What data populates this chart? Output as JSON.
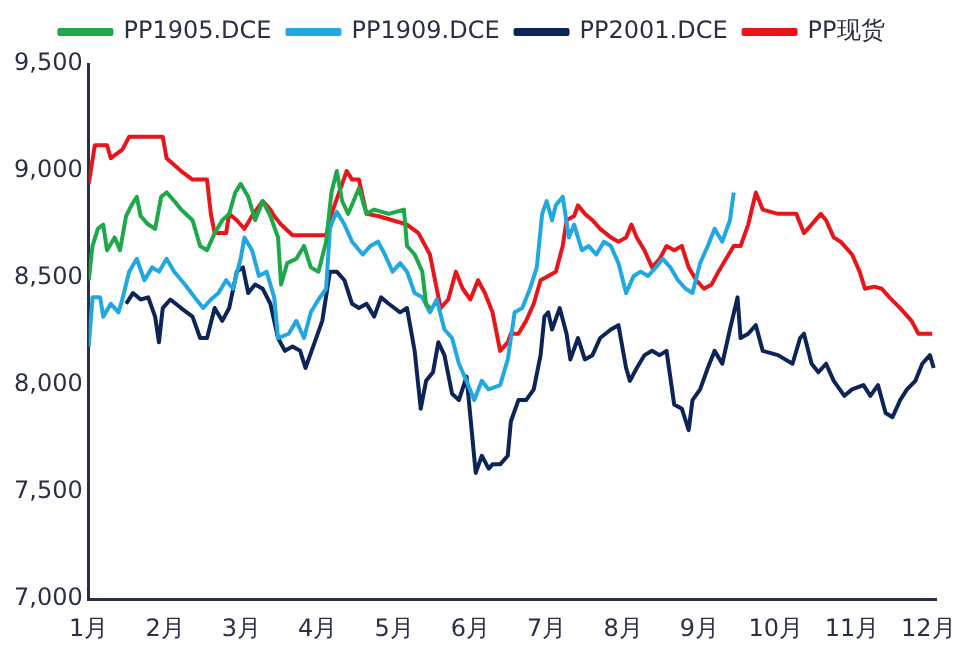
{
  "chart_data": {
    "type": "line",
    "legend": "top",
    "grid": false,
    "xlim": [
      1,
      12.1
    ],
    "xticks": [
      {
        "value": 1,
        "label": "1月"
      },
      {
        "value": 2,
        "label": "2月"
      },
      {
        "value": 3,
        "label": "3月"
      },
      {
        "value": 4,
        "label": "4月"
      },
      {
        "value": 5,
        "label": "5月"
      },
      {
        "value": 6,
        "label": "6月"
      },
      {
        "value": 7,
        "label": "7月"
      },
      {
        "value": 8,
        "label": "8月"
      },
      {
        "value": 9,
        "label": "9月"
      },
      {
        "value": 10,
        "label": "10月"
      },
      {
        "value": 11,
        "label": "11月"
      },
      {
        "value": 12,
        "label": "12月"
      }
    ],
    "ylim": [
      7000,
      9500
    ],
    "yticks": [
      {
        "value": 7000,
        "label": "7,000"
      },
      {
        "value": 7500,
        "label": "7,500"
      },
      {
        "value": 8000,
        "label": "8,000"
      },
      {
        "value": 8500,
        "label": "8,500"
      },
      {
        "value": 9000,
        "label": "9,000"
      },
      {
        "value": 9500,
        "label": "9,500"
      }
    ],
    "series": [
      {
        "name": "PP1905.DCE",
        "color": "#1fa84a",
        "x": [
          1.0,
          1.05,
          1.12,
          1.19,
          1.24,
          1.34,
          1.41,
          1.49,
          1.56,
          1.63,
          1.68,
          1.78,
          1.87,
          1.95,
          2.02,
          2.12,
          2.21,
          2.36,
          2.46,
          2.55,
          2.65,
          2.75,
          2.84,
          2.92,
          2.99,
          3.09,
          3.18,
          3.28,
          3.38,
          3.48,
          3.52,
          3.6,
          3.72,
          3.82,
          3.91,
          4.01,
          4.11,
          4.18,
          4.25,
          4.32,
          4.4,
          4.54,
          4.64,
          4.74,
          4.93,
          5.13,
          5.17,
          5.27,
          5.37,
          5.42,
          5.47
        ],
        "values": [
          8490,
          8650,
          8730,
          8750,
          8630,
          8690,
          8630,
          8790,
          8840,
          8880,
          8790,
          8750,
          8730,
          8880,
          8900,
          8860,
          8820,
          8770,
          8650,
          8630,
          8710,
          8770,
          8800,
          8900,
          8940,
          8880,
          8770,
          8860,
          8790,
          8690,
          8470,
          8570,
          8590,
          8650,
          8550,
          8530,
          8670,
          8900,
          9000,
          8860,
          8800,
          8920,
          8800,
          8820,
          8800,
          8820,
          8650,
          8610,
          8530,
          8380,
          8360
        ]
      },
      {
        "name": "PP1909.DCE",
        "color": "#22a8e0",
        "x": [
          1.0,
          1.05,
          1.15,
          1.19,
          1.29,
          1.39,
          1.44,
          1.53,
          1.63,
          1.73,
          1.83,
          1.92,
          2.02,
          2.12,
          2.26,
          2.41,
          2.5,
          2.6,
          2.7,
          2.8,
          2.89,
          2.99,
          3.04,
          3.14,
          3.23,
          3.33,
          3.43,
          3.48,
          3.62,
          3.72,
          3.82,
          3.91,
          4.01,
          4.11,
          4.16,
          4.2,
          4.25,
          4.35,
          4.45,
          4.59,
          4.69,
          4.79,
          4.88,
          4.98,
          5.08,
          5.17,
          5.27,
          5.37,
          5.47,
          5.56,
          5.66,
          5.76,
          5.85,
          5.95,
          6.05,
          6.15,
          6.24,
          6.39,
          6.49,
          6.58,
          6.68,
          6.78,
          6.87,
          6.94,
          7.0,
          7.07,
          7.12,
          7.21,
          7.29,
          7.36,
          7.46,
          7.55,
          7.65,
          7.75,
          7.84,
          7.94,
          8.04,
          8.14,
          8.23,
          8.33,
          8.43,
          8.52,
          8.62,
          8.72,
          8.82,
          8.91,
          9.01,
          9.11,
          9.2,
          9.3,
          9.4,
          9.45
        ],
        "values": [
          8180,
          8410,
          8410,
          8320,
          8380,
          8340,
          8400,
          8530,
          8590,
          8490,
          8550,
          8530,
          8590,
          8530,
          8470,
          8400,
          8360,
          8400,
          8430,
          8490,
          8450,
          8590,
          8690,
          8630,
          8510,
          8530,
          8410,
          8220,
          8240,
          8300,
          8220,
          8340,
          8400,
          8450,
          8730,
          8770,
          8810,
          8750,
          8670,
          8610,
          8650,
          8670,
          8610,
          8530,
          8570,
          8530,
          8430,
          8410,
          8340,
          8400,
          8260,
          8220,
          8100,
          8020,
          7930,
          8020,
          7980,
          8000,
          8120,
          8340,
          8360,
          8450,
          8550,
          8800,
          8860,
          8770,
          8840,
          8880,
          8690,
          8750,
          8630,
          8650,
          8610,
          8670,
          8650,
          8570,
          8430,
          8510,
          8530,
          8510,
          8550,
          8590,
          8550,
          8490,
          8450,
          8430,
          8570,
          8650,
          8730,
          8670,
          8770,
          8900
        ]
      },
      {
        "name": "PP2001.DCE",
        "color": "#0d2457",
        "x": [
          1.49,
          1.58,
          1.68,
          1.78,
          1.87,
          1.92,
          1.97,
          2.07,
          2.21,
          2.36,
          2.46,
          2.55,
          2.65,
          2.75,
          2.84,
          2.94,
          3.02,
          3.09,
          3.18,
          3.28,
          3.38,
          3.48,
          3.57,
          3.67,
          3.77,
          3.84,
          3.96,
          4.06,
          4.16,
          4.25,
          4.35,
          4.45,
          4.54,
          4.64,
          4.74,
          4.83,
          4.93,
          5.08,
          5.17,
          5.27,
          5.35,
          5.42,
          5.51,
          5.58,
          5.66,
          5.76,
          5.85,
          5.95,
          6.07,
          6.15,
          6.24,
          6.29,
          6.39,
          6.49,
          6.53,
          6.63,
          6.73,
          6.83,
          6.92,
          6.97,
          7.02,
          7.07,
          7.17,
          7.26,
          7.31,
          7.41,
          7.5,
          7.6,
          7.7,
          7.84,
          7.94,
          8.04,
          8.09,
          8.18,
          8.28,
          8.38,
          8.48,
          8.57,
          8.67,
          8.77,
          8.86,
          8.91,
          9.01,
          9.11,
          9.2,
          9.3,
          9.4,
          9.5,
          9.54,
          9.64,
          9.74,
          9.83,
          10.03,
          10.22,
          10.32,
          10.37,
          10.47,
          10.56,
          10.66,
          10.76,
          10.9,
          11.0,
          11.15,
          11.24,
          11.34,
          11.44,
          11.53,
          11.63,
          11.72,
          11.83,
          11.92,
          12.02,
          12.07
        ],
        "values": [
          8380,
          8430,
          8400,
          8410,
          8320,
          8200,
          8360,
          8400,
          8360,
          8320,
          8220,
          8220,
          8360,
          8300,
          8360,
          8530,
          8550,
          8430,
          8470,
          8450,
          8380,
          8220,
          8160,
          8180,
          8160,
          8080,
          8200,
          8300,
          8530,
          8530,
          8490,
          8380,
          8360,
          8380,
          8320,
          8410,
          8380,
          8340,
          8360,
          8160,
          7890,
          8020,
          8060,
          8200,
          8140,
          7960,
          7930,
          8040,
          7590,
          7670,
          7610,
          7630,
          7630,
          7670,
          7830,
          7930,
          7930,
          7980,
          8140,
          8320,
          8340,
          8260,
          8360,
          8240,
          8120,
          8220,
          8120,
          8140,
          8220,
          8260,
          8280,
          8080,
          8020,
          8080,
          8140,
          8160,
          8140,
          8160,
          7910,
          7890,
          7790,
          7930,
          7980,
          8080,
          8160,
          8100,
          8260,
          8410,
          8220,
          8240,
          8280,
          8160,
          8140,
          8100,
          8220,
          8240,
          8100,
          8060,
          8100,
          8020,
          7950,
          7980,
          8000,
          7950,
          8000,
          7870,
          7850,
          7930,
          7980,
          8020,
          8100,
          8140,
          8080
        ]
      },
      {
        "name": "PP现货",
        "color": "#e8151b",
        "x": [
          1.0,
          1.08,
          1.24,
          1.29,
          1.44,
          1.53,
          1.97,
          2.02,
          2.21,
          2.36,
          2.55,
          2.6,
          2.65,
          2.8,
          2.84,
          2.94,
          3.04,
          3.14,
          3.28,
          3.38,
          3.43,
          3.52,
          3.67,
          4.11,
          4.2,
          4.3,
          4.38,
          4.45,
          4.54,
          4.64,
          4.79,
          4.98,
          5.17,
          5.32,
          5.47,
          5.56,
          5.61,
          5.71,
          5.81,
          5.9,
          6.0,
          6.1,
          6.19,
          6.29,
          6.39,
          6.49,
          6.53,
          6.63,
          6.73,
          6.83,
          6.92,
          7.02,
          7.12,
          7.21,
          7.26,
          7.36,
          7.41,
          7.5,
          7.6,
          7.7,
          7.84,
          7.94,
          8.04,
          8.11,
          8.18,
          8.28,
          8.38,
          8.48,
          8.57,
          8.67,
          8.77,
          8.86,
          8.96,
          9.06,
          9.16,
          9.25,
          9.35,
          9.45,
          9.54,
          9.64,
          9.74,
          9.83,
          10.03,
          10.27,
          10.37,
          10.47,
          10.59,
          10.66,
          10.76,
          10.85,
          11.0,
          11.1,
          11.17,
          11.29,
          11.39,
          11.49,
          11.63,
          11.78,
          11.87,
          12.05
        ],
        "values": [
          8940,
          9120,
          9120,
          9060,
          9100,
          9160,
          9160,
          9060,
          9000,
          8960,
          8960,
          8800,
          8710,
          8710,
          8800,
          8770,
          8730,
          8790,
          8860,
          8820,
          8790,
          8750,
          8700,
          8700,
          8820,
          8920,
          9000,
          8960,
          8960,
          8800,
          8790,
          8770,
          8750,
          8710,
          8610,
          8450,
          8360,
          8400,
          8530,
          8450,
          8400,
          8490,
          8430,
          8340,
          8160,
          8200,
          8240,
          8240,
          8300,
          8380,
          8490,
          8510,
          8530,
          8650,
          8770,
          8790,
          8840,
          8800,
          8770,
          8730,
          8690,
          8670,
          8690,
          8750,
          8690,
          8630,
          8550,
          8590,
          8650,
          8630,
          8650,
          8550,
          8490,
          8450,
          8470,
          8530,
          8590,
          8650,
          8650,
          8750,
          8900,
          8820,
          8800,
          8800,
          8710,
          8750,
          8800,
          8770,
          8690,
          8670,
          8610,
          8530,
          8450,
          8460,
          8450,
          8410,
          8360,
          8300,
          8240,
          8240
        ]
      }
    ]
  }
}
